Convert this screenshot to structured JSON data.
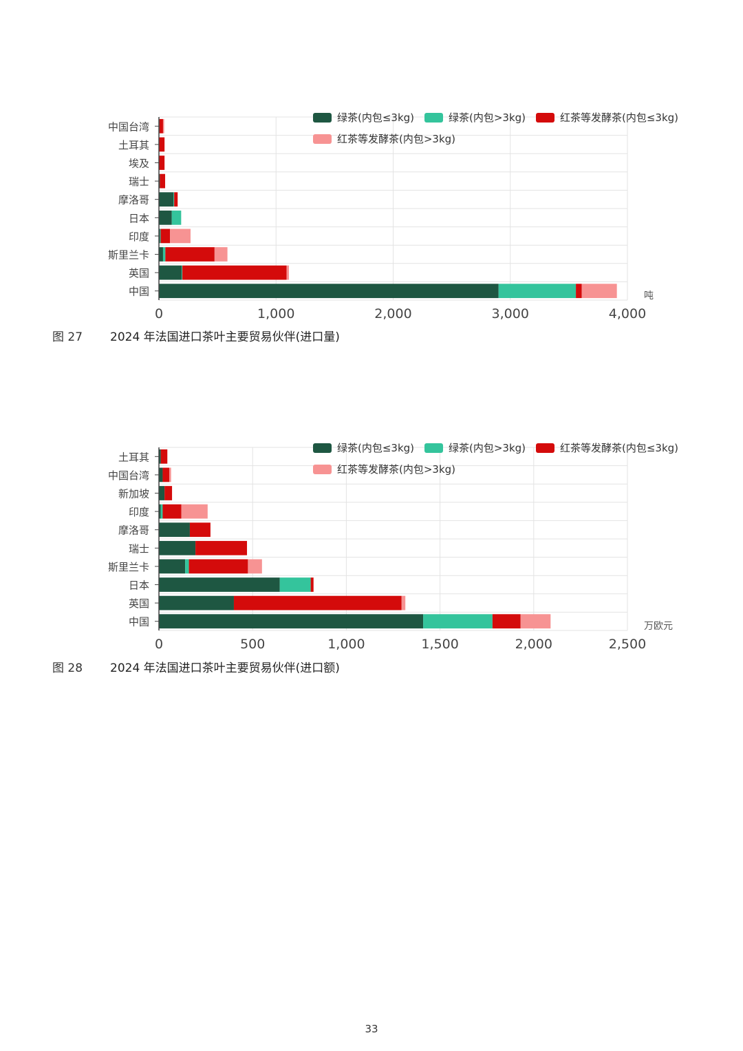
{
  "colors": {
    "green_small": "#1e5742",
    "green_large": "#34c49c",
    "red_small": "#d40b0b",
    "red_large": "#f79393",
    "grid": "#e3e3e3",
    "axis": "#444444"
  },
  "legend_labels": [
    "绿茶(内包≤3kg)",
    "绿茶(内包>3kg)",
    "红茶等发酵茶(内包≤3kg)",
    "红茶等发酵茶(内包>3kg)"
  ],
  "chart_data": [
    {
      "type": "bar",
      "orientation": "horizontal",
      "stacked": true,
      "categories": [
        "中国台湾",
        "土耳其",
        "埃及",
        "瑞士",
        "摩洛哥",
        "日本",
        "印度",
        "斯里兰卡",
        "英国",
        "中国"
      ],
      "series": [
        {
          "name": "绿茶(内包≤3kg)",
          "values": [
            5,
            3,
            3,
            8,
            125,
            110,
            10,
            35,
            195,
            2900
          ]
        },
        {
          "name": "绿茶(内包>3kg)",
          "values": [
            0,
            0,
            0,
            0,
            5,
            80,
            5,
            20,
            5,
            660
          ]
        },
        {
          "name": "红茶等发酵茶(内包≤3kg)",
          "values": [
            30,
            45,
            45,
            45,
            30,
            0,
            80,
            420,
            890,
            50
          ]
        },
        {
          "name": "红茶等发酵茶(内包>3kg)",
          "values": [
            10,
            0,
            0,
            0,
            0,
            0,
            175,
            110,
            20,
            300
          ]
        }
      ],
      "xlim": [
        0,
        4000
      ],
      "xticks": [
        "0",
        "1,000",
        "2,000",
        "3,000",
        "4,000"
      ],
      "xtick_values": [
        0,
        1000,
        2000,
        3000,
        4000
      ],
      "unit": "吨",
      "grid": true,
      "legend_position": "top-right"
    },
    {
      "type": "bar",
      "orientation": "horizontal",
      "stacked": true,
      "categories": [
        "土耳其",
        "中国台湾",
        "新加坡",
        "印度",
        "摩洛哥",
        "瑞士",
        "斯里兰卡",
        "日本",
        "英国",
        "中国"
      ],
      "series": [
        {
          "name": "绿茶(内包≤3kg)",
          "values": [
            10,
            20,
            30,
            10,
            165,
            195,
            140,
            645,
            400,
            1410
          ]
        },
        {
          "name": "绿茶(内包>3kg)",
          "values": [
            0,
            0,
            0,
            10,
            0,
            0,
            20,
            165,
            0,
            370
          ]
        },
        {
          "name": "红茶等发酵茶(内包≤3kg)",
          "values": [
            35,
            35,
            40,
            100,
            110,
            275,
            315,
            15,
            895,
            150
          ]
        },
        {
          "name": "红茶等发酵茶(内包>3kg)",
          "values": [
            0,
            10,
            0,
            140,
            0,
            0,
            75,
            0,
            20,
            160
          ]
        }
      ],
      "xlim": [
        0,
        2500
      ],
      "xticks": [
        "0",
        "500",
        "1,000",
        "1,500",
        "2,000",
        "2,500"
      ],
      "xtick_values": [
        0,
        500,
        1000,
        1500,
        2000,
        2500
      ],
      "unit": "万欧元",
      "grid": true,
      "legend_position": "top-right"
    }
  ],
  "captions": [
    {
      "label": "图 27",
      "text": "2024 年法国进口茶叶主要贸易伙伴(进口量)"
    },
    {
      "label": "图 28",
      "text": "2024 年法国进口茶叶主要贸易伙伴(进口额)"
    }
  ],
  "page_number": "33"
}
